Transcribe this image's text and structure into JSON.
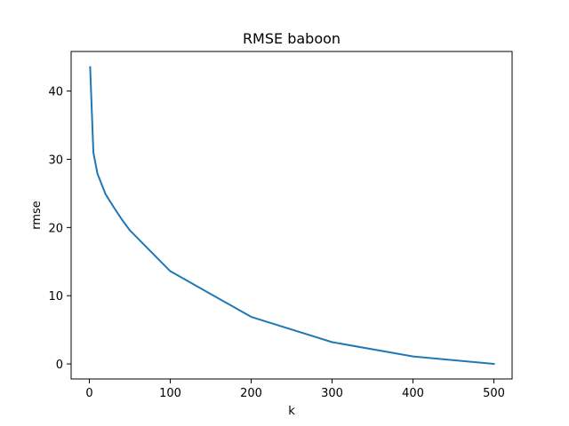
{
  "chart_data": {
    "type": "line",
    "title": "RMSE baboon",
    "xlabel": "k",
    "ylabel": "rmse",
    "xlim": [
      -22.5,
      522.5
    ],
    "ylim": [
      -2.2,
      45.8
    ],
    "xticks": [
      0,
      100,
      200,
      300,
      400,
      500
    ],
    "yticks": [
      0,
      10,
      20,
      30,
      40
    ],
    "grid": false,
    "legend": "none",
    "series": [
      {
        "color": "#1f77b4",
        "x": [
          1,
          5,
          10,
          20,
          30,
          40,
          50,
          100,
          200,
          300,
          400,
          500
        ],
        "y": [
          43.5,
          31.0,
          27.9,
          24.9,
          23.0,
          21.2,
          19.6,
          13.6,
          6.9,
          3.2,
          1.1,
          0.0
        ]
      }
    ]
  }
}
